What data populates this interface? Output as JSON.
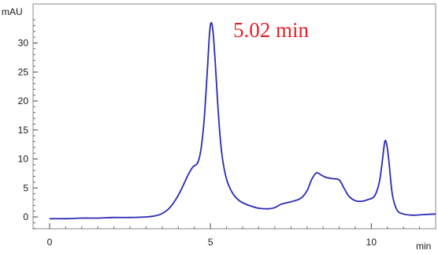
{
  "chart_data": {
    "type": "line",
    "title": "",
    "xlabel": "min",
    "ylabel": "mAU",
    "xlim": [
      0,
      12
    ],
    "ylim": [
      -2,
      35
    ],
    "x_major_ticks": [
      0,
      5,
      10
    ],
    "y_major_ticks": [
      0,
      5,
      10,
      15,
      20,
      25,
      30
    ],
    "grid": false,
    "legend": "none",
    "annotations": [
      {
        "text": "5.02 min",
        "x": 5.02,
        "y": 33.5
      }
    ],
    "series": [
      {
        "color": "#2b2bb5",
        "x": [
          0,
          0.5,
          1,
          1.5,
          2,
          2.5,
          3,
          3.3,
          3.5,
          3.7,
          3.9,
          4.1,
          4.3,
          4.45,
          4.6,
          4.7,
          4.8,
          4.9,
          4.97,
          5.02,
          5.08,
          5.15,
          5.25,
          5.35,
          5.5,
          5.7,
          5.9,
          6.1,
          6.3,
          6.5,
          6.8,
          7.0,
          7.2,
          7.5,
          7.8,
          8.0,
          8.15,
          8.3,
          8.45,
          8.6,
          8.8,
          9.0,
          9.15,
          9.3,
          9.5,
          9.7,
          9.9,
          10.1,
          10.25,
          10.35,
          10.42,
          10.48,
          10.55,
          10.65,
          10.8,
          11.0,
          11.3,
          11.6,
          12.0
        ],
        "y": [
          -0.3,
          -0.3,
          -0.2,
          -0.2,
          -0.1,
          -0.1,
          0.0,
          0.2,
          0.6,
          1.4,
          2.8,
          4.8,
          7.2,
          8.6,
          9.3,
          11.5,
          16.5,
          25.0,
          31.5,
          33.5,
          32.0,
          26.5,
          17.5,
          11.0,
          6.5,
          4.0,
          2.8,
          2.2,
          1.8,
          1.5,
          1.4,
          1.6,
          2.2,
          2.6,
          3.2,
          4.5,
          6.5,
          7.6,
          7.2,
          6.8,
          6.6,
          6.4,
          5.0,
          3.6,
          2.8,
          2.7,
          3.0,
          3.6,
          6.0,
          10.0,
          13.0,
          12.5,
          9.5,
          4.0,
          1.2,
          0.5,
          0.3,
          0.4,
          0.5
        ]
      }
    ]
  }
}
